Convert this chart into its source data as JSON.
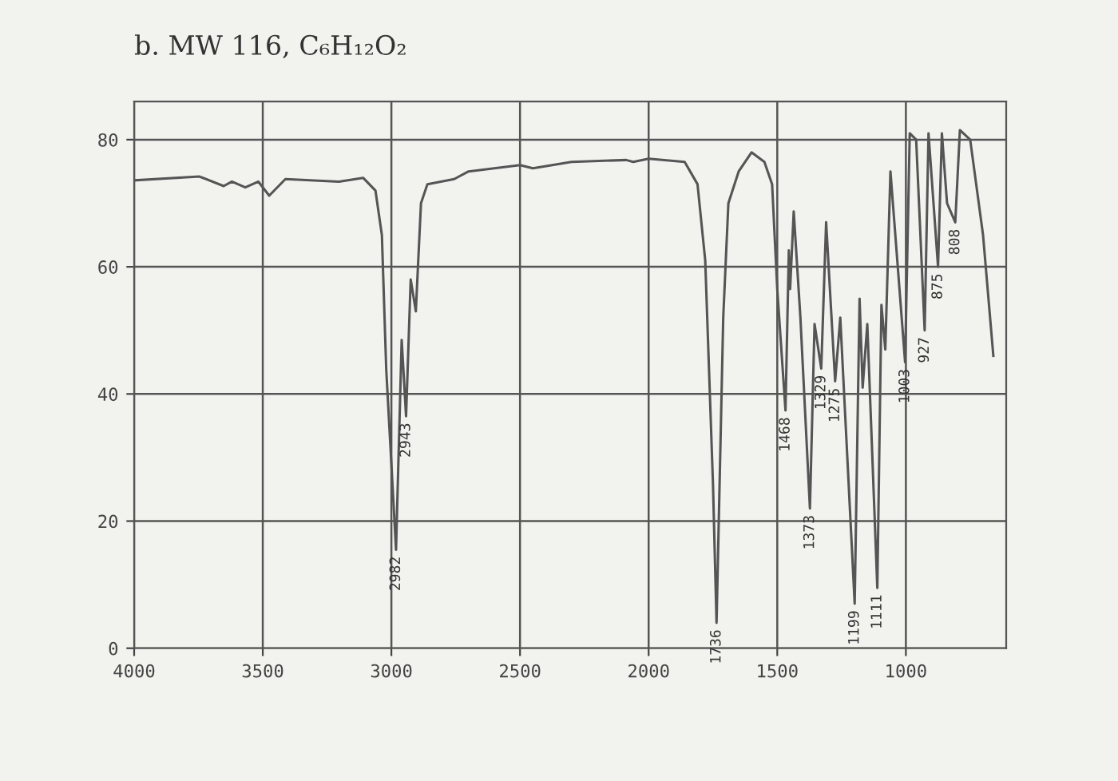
{
  "chart_data": {
    "type": "line",
    "title": "b. MW 116, C₆H₁₂O₂",
    "xlim": [
      4000,
      610
    ],
    "ylim": [
      0,
      86
    ],
    "xticks": [
      4000,
      3500,
      3000,
      2500,
      2000,
      1500,
      1000
    ],
    "yticks": [
      0,
      20,
      40,
      60,
      80
    ],
    "grid": true,
    "marker": "none",
    "line_style": "solid",
    "series": [
      {
        "color": "#555555",
        "x": [
          4000,
          3746,
          3652,
          3620,
          3568,
          3517,
          3475,
          3412,
          3204,
          3110,
          3062,
          3037,
          3020,
          2982,
          2960,
          2943,
          2925,
          2905,
          2885,
          2860,
          2756,
          2700,
          2500,
          2450,
          2300,
          2087,
          2060,
          2000,
          1860,
          1810,
          1780,
          1750,
          1736,
          1710,
          1690,
          1650,
          1600,
          1550,
          1520,
          1500,
          1468,
          1455,
          1450,
          1436,
          1410,
          1373,
          1355,
          1329,
          1310,
          1275,
          1255,
          1199,
          1180,
          1168,
          1150,
          1111,
          1095,
          1080,
          1060,
          1003,
          985,
          960,
          927,
          912,
          875,
          860,
          840,
          808,
          790,
          750,
          700,
          660
        ],
        "values": [
          73.6,
          74.2,
          72.7,
          73.4,
          72.5,
          73.4,
          71.2,
          73.8,
          73.4,
          74,
          72,
          65,
          43.8,
          15.5,
          48.5,
          36.5,
          58,
          53,
          70,
          73,
          73.8,
          75,
          76,
          75.5,
          76.5,
          76.8,
          76.5,
          77,
          76.5,
          73,
          61,
          26,
          4,
          52,
          70,
          75,
          78,
          76.5,
          73,
          56.5,
          37.4,
          62.6,
          56.5,
          68.7,
          52,
          22,
          51,
          44,
          67,
          42,
          52,
          7,
          55,
          41,
          51,
          9.5,
          54,
          47,
          75,
          45,
          81,
          80,
          50,
          81,
          60,
          81,
          70,
          67,
          81.5,
          80,
          65,
          46
        ]
      }
    ],
    "annotations": [
      {
        "text": "2982",
        "x": 2982,
        "y": 15.5
      },
      {
        "text": "2943",
        "x": 2943,
        "y": 36.5
      },
      {
        "text": "1736",
        "x": 1736,
        "y": 4
      },
      {
        "text": "1468",
        "x": 1468,
        "y": 37.4
      },
      {
        "text": "1373",
        "x": 1373,
        "y": 22
      },
      {
        "text": "1329",
        "x": 1329,
        "y": 44
      },
      {
        "text": "1275",
        "x": 1275,
        "y": 42
      },
      {
        "text": "1199",
        "x": 1199,
        "y": 7
      },
      {
        "text": "1111",
        "x": 1111,
        "y": 9.5
      },
      {
        "text": "1003",
        "x": 1003,
        "y": 45
      },
      {
        "text": "927",
        "x": 927,
        "y": 50
      },
      {
        "text": "875",
        "x": 875,
        "y": 60
      },
      {
        "text": "808",
        "x": 808,
        "y": 67
      }
    ]
  }
}
